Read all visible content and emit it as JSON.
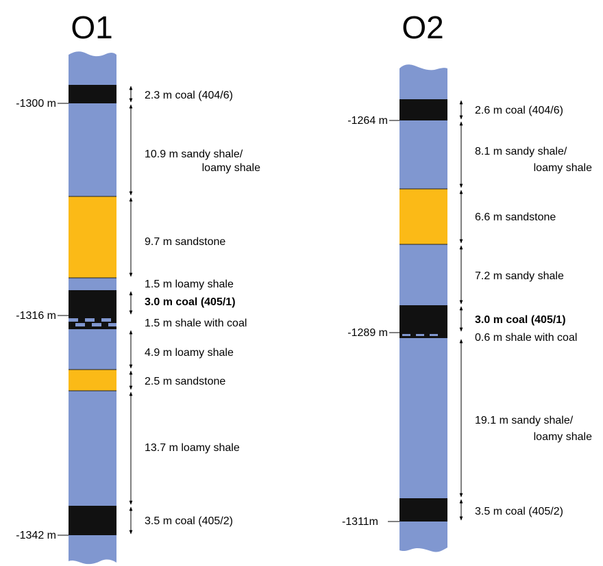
{
  "colors": {
    "shale": "#8097d0",
    "coal": "#111111",
    "sandstone": "#fbba17",
    "background": "#ffffff"
  },
  "columns": [
    {
      "id": "O1",
      "title": "O1",
      "depths": [
        {
          "label": "-1300 m"
        },
        {
          "label": "-1316 m"
        },
        {
          "label": "-1342 m"
        }
      ],
      "intervals": [
        {
          "label": "2.3 m coal (404/6)",
          "lithology": "coal",
          "thickness_m": 2.3
        },
        {
          "label": "10.9 m sandy shale/",
          "label2": "loamy shale",
          "lithology": "shale",
          "thickness_m": 10.9
        },
        {
          "label": "9.7 m sandstone",
          "lithology": "sandstone",
          "thickness_m": 9.7
        },
        {
          "label": "1.5 m loamy shale",
          "lithology": "shale",
          "thickness_m": 1.5
        },
        {
          "label": "3.0 m coal (405/1)",
          "lithology": "coal",
          "thickness_m": 3.0,
          "bold": true
        },
        {
          "label": "1.5 m shale with coal",
          "lithology": "shale-with-coal",
          "thickness_m": 1.5
        },
        {
          "label": "4.9 m loamy shale",
          "lithology": "shale",
          "thickness_m": 4.9
        },
        {
          "label": "2.5 m sandstone",
          "lithology": "sandstone",
          "thickness_m": 2.5
        },
        {
          "label": "13.7 m loamy shale",
          "lithology": "shale",
          "thickness_m": 13.7
        },
        {
          "label": "3.5 m coal (405/2)",
          "lithology": "coal",
          "thickness_m": 3.5
        }
      ]
    },
    {
      "id": "O2",
      "title": "O2",
      "depths": [
        {
          "label": "-1264 m"
        },
        {
          "label": "-1289 m"
        },
        {
          "label": "-1311m"
        }
      ],
      "intervals": [
        {
          "label": "2.6 m coal (404/6)",
          "lithology": "coal",
          "thickness_m": 2.6
        },
        {
          "label": "8.1 m sandy shale/",
          "label2": "loamy shale",
          "lithology": "shale",
          "thickness_m": 8.1
        },
        {
          "label": "6.6 m sandstone",
          "lithology": "sandstone",
          "thickness_m": 6.6
        },
        {
          "label": "7.2 m sandy shale",
          "lithology": "shale",
          "thickness_m": 7.2
        },
        {
          "label": "3.0 m coal (405/1)",
          "lithology": "coal",
          "thickness_m": 3.0,
          "bold": true
        },
        {
          "label": "0.6 m shale with coal",
          "lithology": "shale-with-coal",
          "thickness_m": 0.6
        },
        {
          "label": "19.1 m sandy shale/",
          "label2": "loamy shale",
          "lithology": "shale",
          "thickness_m": 19.1
        },
        {
          "label": "3.5 m coal (405/2)",
          "lithology": "coal",
          "thickness_m": 3.5
        }
      ]
    }
  ]
}
